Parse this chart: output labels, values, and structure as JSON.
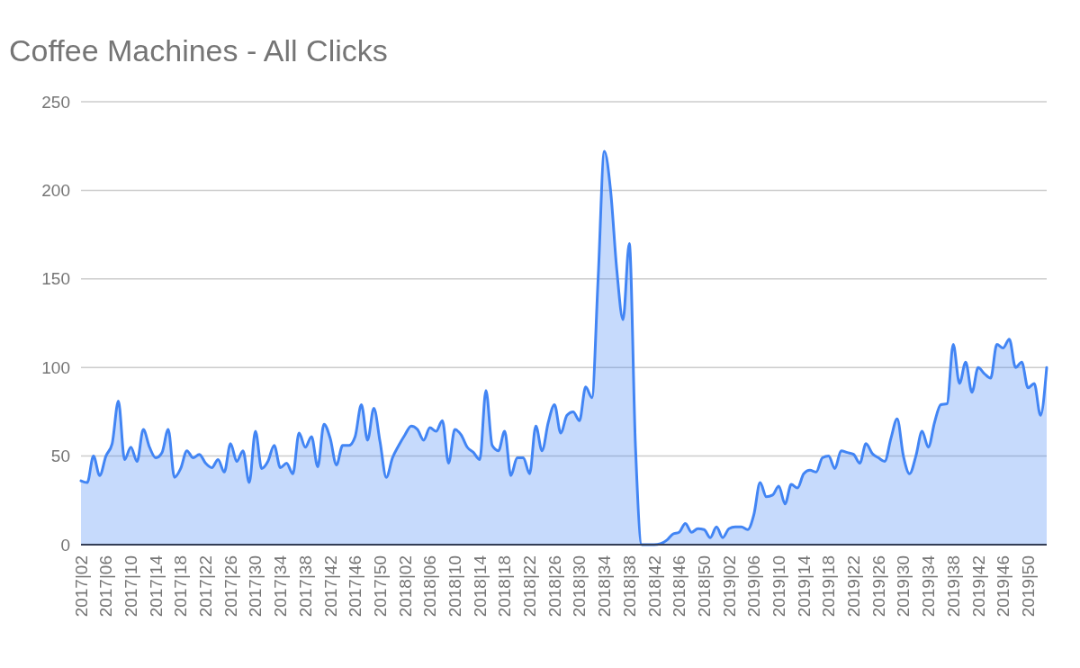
{
  "chart_data": {
    "type": "area",
    "title": "Coffee Machines - All Clicks",
    "categories": [
      "2017|02",
      null,
      null,
      null,
      "2017|06",
      null,
      null,
      null,
      "2017|10",
      null,
      null,
      null,
      "2017|14",
      null,
      null,
      null,
      "2017|18",
      null,
      null,
      null,
      "2017|22",
      null,
      null,
      null,
      "2017|26",
      null,
      null,
      null,
      "2017|30",
      null,
      null,
      null,
      "2017|34",
      null,
      null,
      null,
      "2017|38",
      null,
      null,
      null,
      "2017|42",
      null,
      null,
      null,
      "2017|46",
      null,
      null,
      null,
      "2017|50",
      null,
      null,
      null,
      "2018|02",
      null,
      null,
      null,
      "2018|06",
      null,
      null,
      null,
      "2018|10",
      null,
      null,
      null,
      "2018|14",
      null,
      null,
      null,
      "2018|18",
      null,
      null,
      null,
      "2018|22",
      null,
      null,
      null,
      "2018|26",
      null,
      null,
      null,
      "2018|30",
      null,
      null,
      null,
      "2018|34",
      null,
      null,
      null,
      "2018|38",
      null,
      null,
      null,
      "2018|42",
      null,
      null,
      null,
      "2018|46",
      null,
      null,
      null,
      "2018|50",
      null,
      null,
      null,
      "2019|02",
      null,
      null,
      null,
      "2019|06",
      null,
      null,
      null,
      "2019|10",
      null,
      null,
      null,
      "2019|14",
      null,
      null,
      null,
      "2019|18",
      null,
      null,
      null,
      "2019|22",
      null,
      null,
      null,
      "2019|26",
      null,
      null,
      null,
      "2019|30",
      null,
      null,
      null,
      "2019|34",
      null,
      null,
      null,
      "2019|38",
      null,
      null,
      null,
      "2019|42",
      null,
      null,
      null,
      "2019|46",
      null,
      null,
      null,
      "2019|50",
      null,
      null,
      null
    ],
    "series": [
      {
        "color": "#4285f4",
        "values": [
          36,
          35,
          50,
          39,
          50,
          57,
          81,
          48,
          55,
          47,
          65,
          55,
          49,
          52,
          65,
          38,
          43,
          53,
          49,
          51,
          46,
          43.5,
          48,
          41,
          57,
          47,
          53,
          35,
          64,
          43,
          47,
          56,
          43.5,
          46,
          40,
          63,
          55,
          61,
          44,
          68,
          60,
          45,
          56,
          56,
          61,
          79,
          59,
          77,
          58,
          38,
          49,
          56,
          62,
          67,
          65,
          59,
          66,
          64,
          70,
          46,
          65,
          62,
          55,
          52,
          48,
          87,
          56,
          53,
          64,
          39,
          49,
          49,
          40,
          67,
          53,
          69,
          79,
          63,
          73,
          75,
          70,
          89,
          83,
          150,
          222,
          200,
          155,
          127,
          170,
          55,
          0,
          0,
          0,
          0.5,
          2.5,
          6,
          7,
          12,
          7,
          9,
          8.5,
          4,
          10,
          4,
          9,
          10,
          10,
          8.5,
          17,
          35,
          27,
          28,
          33,
          23,
          34,
          32,
          40,
          42,
          41,
          49,
          50,
          43,
          53,
          52,
          51,
          46,
          57,
          51.5,
          49,
          47,
          60,
          71,
          50,
          40,
          50,
          64,
          55,
          69,
          79,
          79.5,
          113,
          91,
          103,
          86,
          100,
          96.5,
          94,
          113,
          111,
          116,
          100,
          103,
          88.5,
          91,
          73,
          100
        ]
      }
    ],
    "ylim": [
      0,
      250
    ],
    "yticks": [
      0,
      50,
      100,
      150,
      200,
      250
    ],
    "grid": "y"
  }
}
